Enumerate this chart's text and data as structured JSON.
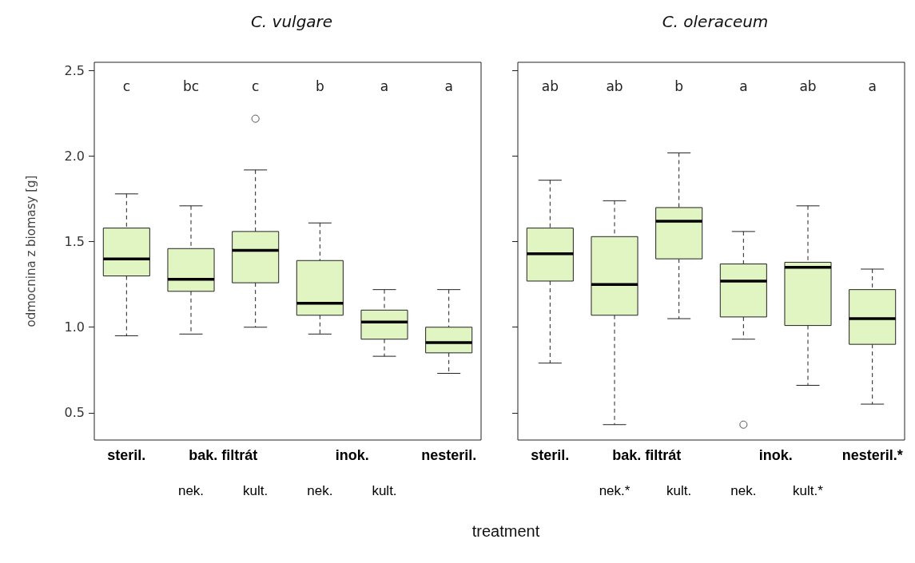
{
  "chart_data": [
    {
      "type": "box",
      "title": "C. vulgare",
      "xlabel": "treatment",
      "ylabel": "odmocnina z biomasy [g]",
      "categories": [
        "steril.",
        "nek.",
        "kult.",
        "nek.",
        "kult.",
        "nesteril."
      ],
      "ylim": [
        0.34,
        2.55
      ],
      "yticks": [
        0.5,
        {
          "value": 1,
          "label": "1.0"
        },
        1.5,
        {
          "value": 2,
          "label": "2.0"
        },
        2.5
      ],
      "grid": false,
      "series": [
        {
          "color": "#e0f5c2",
          "boxes": [
            {
              "low": 0.95,
              "q1": 1.3,
              "median": 1.4,
              "q3": 1.58,
              "high": 1.78
            },
            {
              "low": 0.96,
              "q1": 1.21,
              "median": 1.28,
              "q3": 1.46,
              "high": 1.71
            },
            {
              "low": 1.0,
              "q1": 1.26,
              "median": 1.45,
              "q3": 1.56,
              "high": 1.92,
              "outliers": [
                2.22
              ]
            },
            {
              "low": 0.96,
              "q1": 1.07,
              "median": 1.14,
              "q3": 1.39,
              "high": 1.61
            },
            {
              "low": 0.83,
              "q1": 0.93,
              "median": 1.03,
              "q3": 1.1,
              "high": 1.22
            },
            {
              "low": 0.73,
              "q1": 0.85,
              "median": 0.91,
              "q3": 1.0,
              "high": 1.22
            }
          ]
        }
      ],
      "annotations": [
        "c",
        "bc",
        "c",
        "b",
        "a",
        "a",
        "bak. filtrát",
        "inok."
      ]
    },
    {
      "type": "box",
      "title": "C. oleraceum",
      "categories": [
        "steril.",
        "nek.*",
        "kult.",
        "nek.",
        "kult.*",
        "nesteril.*"
      ],
      "ylim": [
        0.34,
        2.55
      ],
      "yticks": [
        {
          "value": 0.5,
          "label": null
        },
        {
          "value": 1,
          "label": null
        },
        {
          "value": 1.5,
          "label": null
        },
        {
          "value": 2,
          "label": null
        },
        {
          "value": 2.5,
          "label": null
        }
      ],
      "grid": false,
      "tick_labels": "x",
      "series": [
        {
          "color": "#e0f5c2",
          "boxes": [
            {
              "low": 0.79,
              "q1": 1.27,
              "median": 1.43,
              "q3": 1.58,
              "high": 1.86
            },
            {
              "low": 0.43,
              "q1": 1.07,
              "median": 1.25,
              "q3": 1.53,
              "high": 1.74
            },
            {
              "low": 1.05,
              "q1": 1.4,
              "median": 1.62,
              "q3": 1.7,
              "high": 2.02
            },
            {
              "low": 0.93,
              "q1": 1.06,
              "median": 1.27,
              "q3": 1.37,
              "high": 1.56,
              "outliers": [
                0.43
              ]
            },
            {
              "low": 0.66,
              "q1": 1.01,
              "median": 1.35,
              "q3": 1.38,
              "high": 1.71
            },
            {
              "low": 0.55,
              "q1": 0.9,
              "median": 1.05,
              "q3": 1.22,
              "high": 1.34
            }
          ]
        }
      ],
      "annotations": [
        "ab",
        "ab",
        "b",
        "a",
        "ab",
        "a",
        "bak. filtrát",
        "inok."
      ]
    }
  ]
}
